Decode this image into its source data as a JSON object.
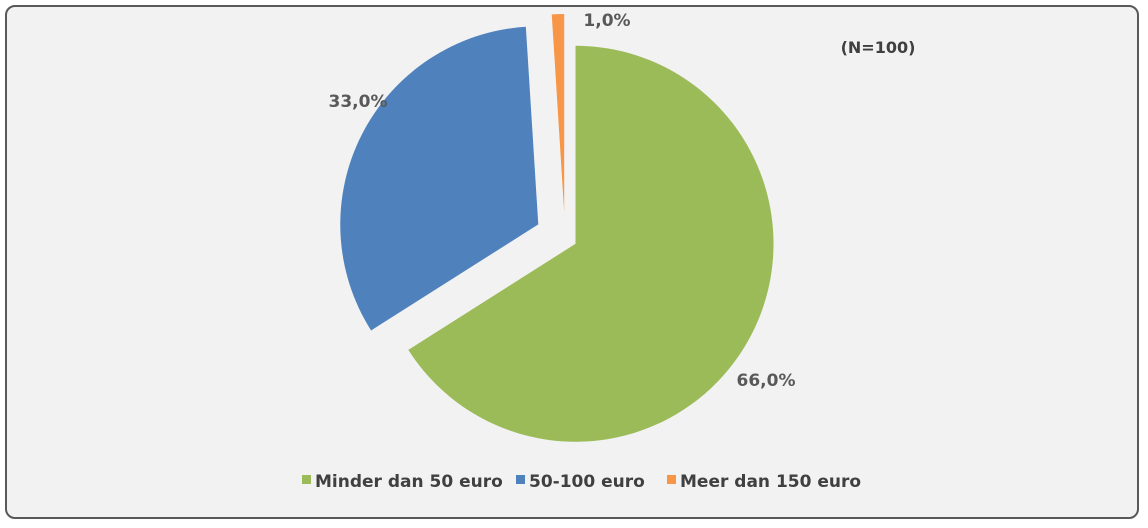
{
  "chart_data": {
    "type": "pie",
    "note": "(N=100)",
    "categories": [
      "Minder dan 50 euro",
      "50-100 euro",
      "Meer dan 150 euro"
    ],
    "values": [
      66.0,
      33.0,
      1.0
    ],
    "value_labels": [
      "66,0%",
      "33,0%",
      "1,0%"
    ],
    "colors": [
      "#9bbb59",
      "#4f81bd",
      "#f79646"
    ],
    "legend_position": "bottom"
  }
}
